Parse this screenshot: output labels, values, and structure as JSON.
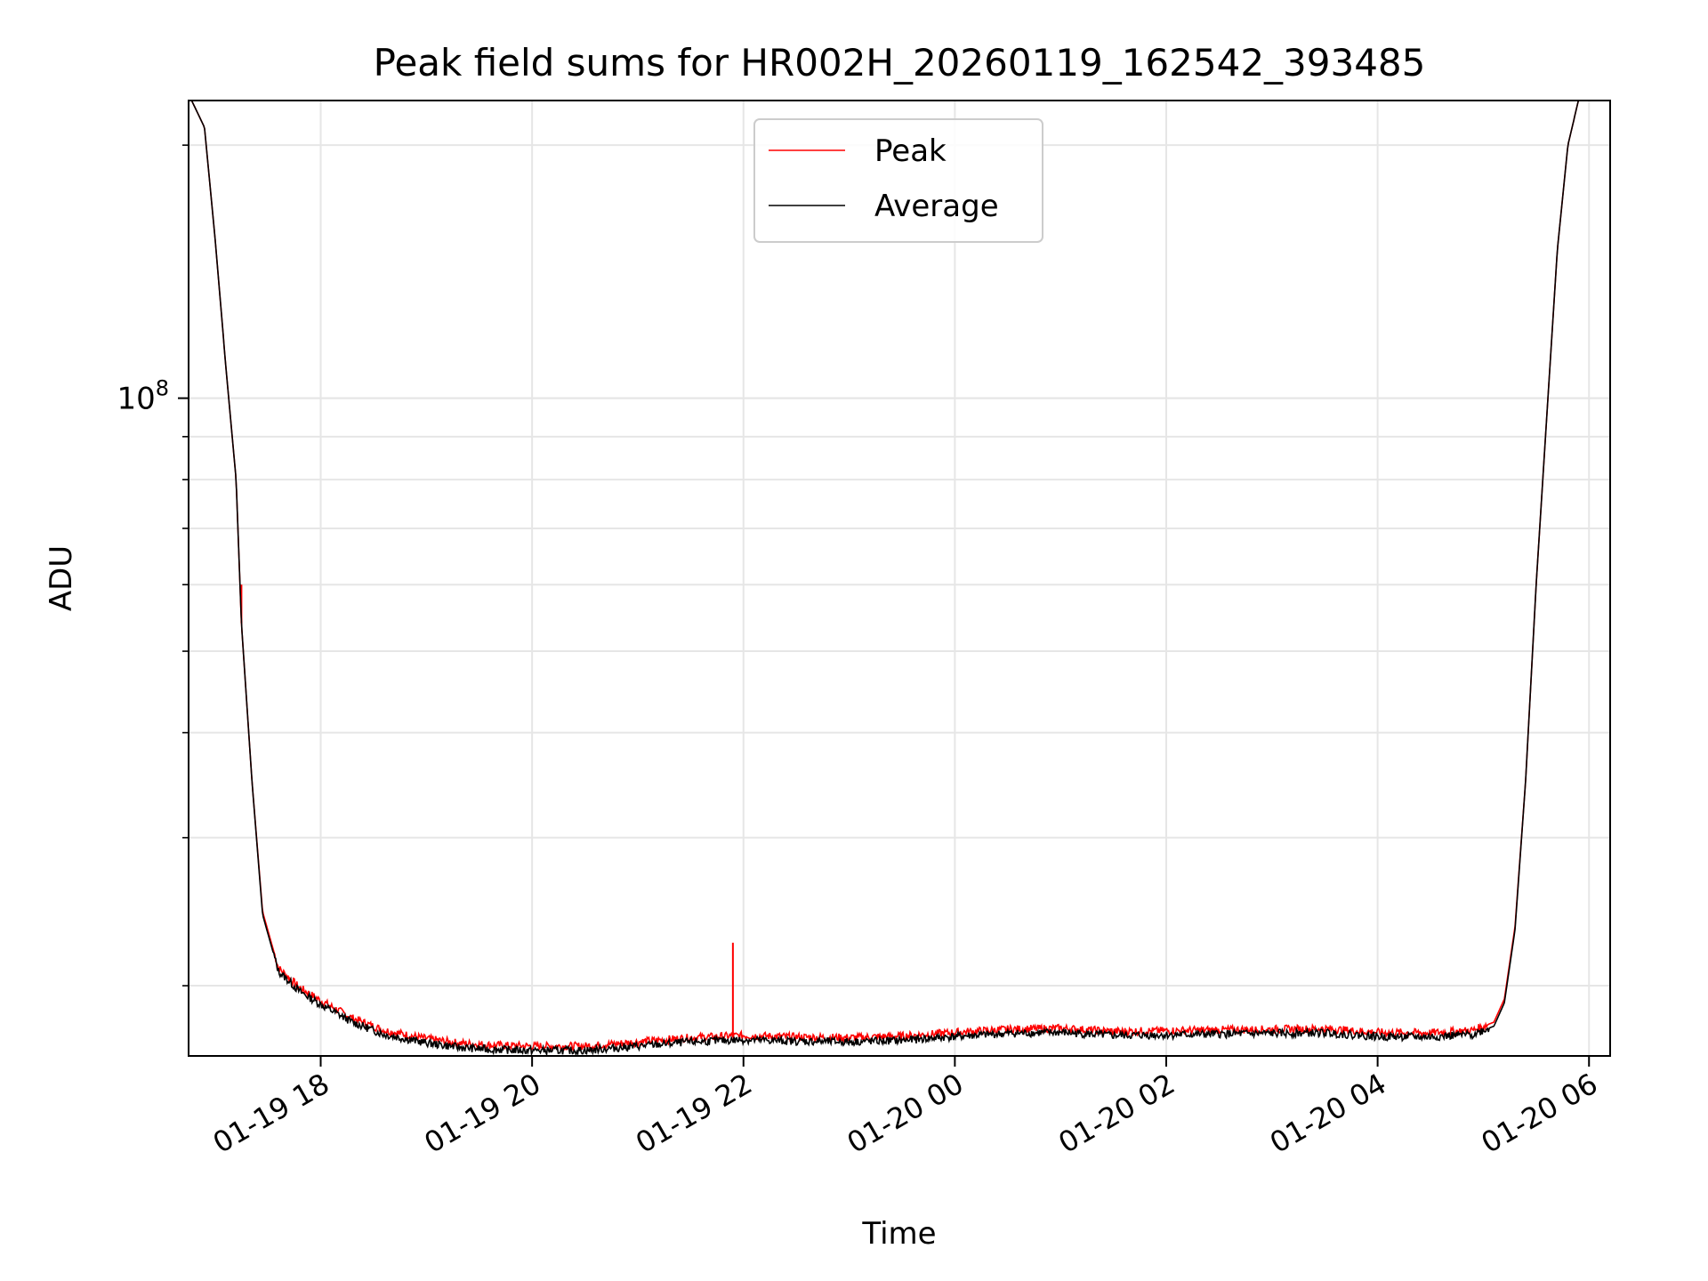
{
  "chart_data": {
    "type": "line",
    "title": "Peak field sums for HR002H_20260119_162542_393485",
    "xlabel": "Time",
    "ylabel": "ADU",
    "y_scale": "log",
    "ylim": [
      16500000,
      226000000
    ],
    "y_major_ticks": [
      {
        "value": 100000000,
        "label_base": "10",
        "label_exp": "8"
      }
    ],
    "y_minor_ticks": [
      20000000,
      30000000,
      40000000,
      50000000,
      60000000,
      70000000,
      80000000,
      90000000,
      200000000
    ],
    "x_hours_range": [
      16.75,
      30.2
    ],
    "x_ticks": [
      {
        "hours": 18,
        "label": "01-19 18"
      },
      {
        "hours": 20,
        "label": "01-19 20"
      },
      {
        "hours": 22,
        "label": "01-19 22"
      },
      {
        "hours": 24,
        "label": "01-20 00"
      },
      {
        "hours": 26,
        "label": "01-20 02"
      },
      {
        "hours": 28,
        "label": "01-20 04"
      },
      {
        "hours": 30,
        "label": "01-20 06"
      }
    ],
    "grid": true,
    "legend_position": "top-center",
    "series": [
      {
        "name": "Peak",
        "color": "#ff0000",
        "x_hours": [
          16.75,
          16.9,
          17.0,
          17.1,
          17.2,
          17.25,
          17.35,
          17.45,
          17.6,
          17.8,
          18.0,
          18.3,
          18.6,
          19.0,
          19.3,
          19.6,
          20.0,
          20.5,
          21.0,
          21.5,
          22.0,
          22.5,
          23.0,
          23.5,
          24.0,
          24.5,
          25.0,
          25.5,
          26.0,
          26.5,
          27.0,
          27.5,
          28.0,
          28.5,
          28.9,
          29.1,
          29.2,
          29.3,
          29.4,
          29.5,
          29.6,
          29.7,
          29.8,
          29.9,
          30.0
        ],
        "values": [
          230000000,
          210000000,
          155000000,
          110000000,
          80000000,
          54000000,
          35000000,
          24500000,
          21000000,
          19900000,
          19200000,
          18300000,
          17700000,
          17300000,
          17100000,
          17000000,
          16950000,
          16950000,
          17150000,
          17350000,
          17450000,
          17380000,
          17350000,
          17420000,
          17600000,
          17750000,
          17800000,
          17650000,
          17680000,
          17720000,
          17750000,
          17780000,
          17600000,
          17580000,
          17700000,
          18100000,
          19300000,
          23500000,
          35000000,
          60000000,
          95000000,
          150000000,
          200000000,
          226000000,
          230000000
        ],
        "spikes": [
          {
            "hours": 17.25,
            "value": 60000000
          },
          {
            "hours": 21.9,
            "value": 22500000
          }
        ]
      },
      {
        "name": "Average",
        "color": "#000000",
        "x_hours": [
          16.75,
          16.9,
          17.0,
          17.1,
          17.2,
          17.25,
          17.35,
          17.45,
          17.6,
          17.8,
          18.0,
          18.3,
          18.6,
          19.0,
          19.3,
          19.6,
          20.0,
          20.5,
          21.0,
          21.5,
          22.0,
          22.5,
          23.0,
          23.5,
          24.0,
          24.5,
          25.0,
          25.5,
          26.0,
          26.5,
          27.0,
          27.5,
          28.0,
          28.5,
          28.9,
          29.1,
          29.2,
          29.3,
          29.4,
          29.5,
          29.6,
          29.7,
          29.8,
          29.9,
          30.0
        ],
        "values": [
          230000000,
          210000000,
          155000000,
          110000000,
          80000000,
          54000000,
          35000000,
          24300000,
          20800000,
          19700000,
          19000000,
          18100000,
          17500000,
          17100000,
          16900000,
          16800000,
          16750000,
          16750000,
          16950000,
          17150000,
          17250000,
          17180000,
          17150000,
          17220000,
          17400000,
          17550000,
          17600000,
          17450000,
          17480000,
          17520000,
          17550000,
          17580000,
          17400000,
          17380000,
          17500000,
          17900000,
          19100000,
          23300000,
          35000000,
          60000000,
          95000000,
          150000000,
          200000000,
          226000000,
          230000000
        ]
      }
    ]
  }
}
